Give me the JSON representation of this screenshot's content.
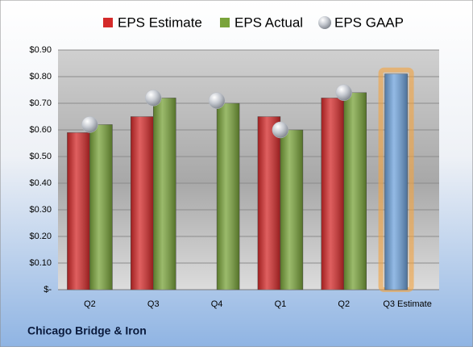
{
  "chart_data": {
    "type": "bar",
    "title": "Chicago Bridge & Iron",
    "categories": [
      "Q2",
      "Q3",
      "Q4",
      "Q1",
      "Q2",
      "Q3 Estimate"
    ],
    "series": [
      {
        "name": "EPS Estimate",
        "color": "#d42a2a",
        "type": "bar",
        "slot": 0,
        "values": [
          0.59,
          0.65,
          null,
          0.65,
          0.72,
          null
        ]
      },
      {
        "name": "EPS Actual",
        "color": "#79a33a",
        "type": "bar",
        "slot": 1,
        "values": [
          0.62,
          0.72,
          0.7,
          0.6,
          0.74,
          null
        ]
      },
      {
        "name": "EPS GAAP",
        "color": "#b8bcc4",
        "type": "scatter",
        "values": [
          0.62,
          0.72,
          0.71,
          0.6,
          0.74,
          null
        ]
      },
      {
        "color": "#6fa3dc",
        "type": "bar",
        "slot": 0,
        "glow": "#f4a340",
        "values": [
          null,
          null,
          null,
          null,
          null,
          0.81
        ]
      }
    ],
    "ylim": [
      0,
      0.9
    ],
    "yticks": [
      {
        "value": 0,
        "label": "$-"
      },
      {
        "value": 0.1,
        "label": "$0.10"
      },
      {
        "value": 0.2,
        "label": "$0.20"
      },
      {
        "value": 0.3,
        "label": "$0.30"
      },
      {
        "value": 0.4,
        "label": "$0.40"
      },
      {
        "value": 0.5,
        "label": "$0.50"
      },
      {
        "value": 0.6,
        "label": "$0.60"
      },
      {
        "value": 0.7,
        "label": "$0.70"
      },
      {
        "value": 0.8,
        "label": "$0.80"
      },
      {
        "value": 0.9,
        "label": "$0.90"
      }
    ],
    "grid": true
  }
}
